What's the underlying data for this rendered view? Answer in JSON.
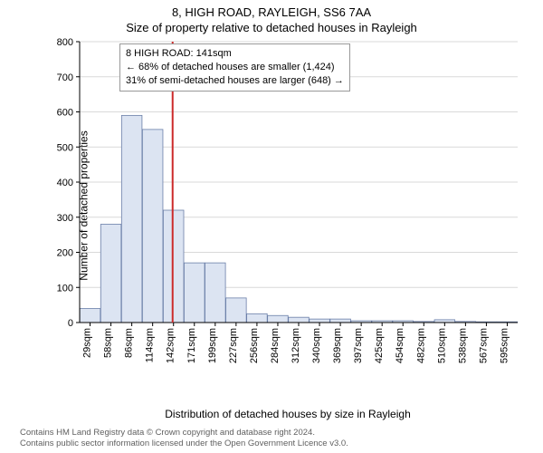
{
  "titles": {
    "main": "8, HIGH ROAD, RAYLEIGH, SS6 7AA",
    "sub": "Size of property relative to detached houses in Rayleigh"
  },
  "axes": {
    "ylabel": "Number of detached properties",
    "xlabel": "Distribution of detached houses by size in Rayleigh",
    "label_fontsize": 12
  },
  "chart": {
    "type": "histogram",
    "ylim": [
      0,
      800
    ],
    "ytick_step": 100,
    "yticks": [
      0,
      100,
      200,
      300,
      400,
      500,
      600,
      700,
      800
    ],
    "x_categories": [
      "29sqm",
      "58sqm",
      "86sqm",
      "114sqm",
      "142sqm",
      "171sqm",
      "199sqm",
      "227sqm",
      "256sqm",
      "284sqm",
      "312sqm",
      "340sqm",
      "369sqm",
      "397sqm",
      "425sqm",
      "454sqm",
      "482sqm",
      "510sqm",
      "538sqm",
      "567sqm",
      "595sqm"
    ],
    "values": [
      40,
      280,
      590,
      550,
      320,
      170,
      170,
      70,
      25,
      20,
      15,
      10,
      10,
      5,
      5,
      5,
      3,
      8,
      3,
      2,
      2
    ],
    "bar_fill": "#dce4f2",
    "bar_stroke": "#6b7fa8",
    "grid_color": "#d9d9d9",
    "axis_color": "#000000",
    "bar_width_ratio": 0.98,
    "plot_bg": "#ffffff"
  },
  "marker": {
    "x_value": 141,
    "line_color": "#cc2b2b",
    "line_width": 2
  },
  "annotation": {
    "line1": "8 HIGH ROAD: 141sqm",
    "line2": "← 68% of detached houses are smaller (1,424)",
    "line3": "31% of semi-detached houses are larger (648) →",
    "border_color": "#999999",
    "bg": "#ffffff",
    "fontsize": 11
  },
  "footer": {
    "line1": "Contains HM Land Registry data © Crown copyright and database right 2024.",
    "line2": "Contains public sector information licensed under the Open Government Licence v3.0.",
    "color": "#606060",
    "fontsize": 9.5
  }
}
